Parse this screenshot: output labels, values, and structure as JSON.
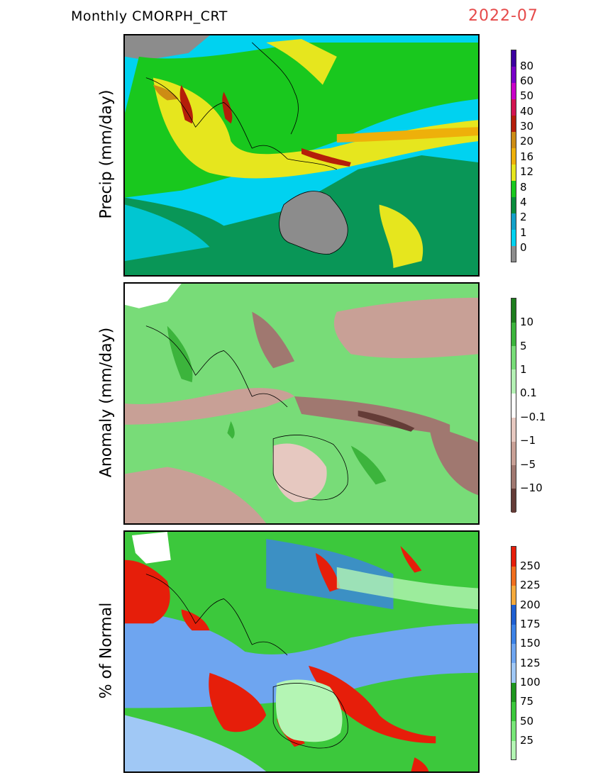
{
  "title": "Monthly CMORPH_CRT",
  "date": "2022-07",
  "panels": [
    {
      "ylabel": "Precip (mm/day)",
      "legend": [
        "0",
        "1",
        "2",
        "4",
        "8",
        "12",
        "16",
        "20",
        "30",
        "40",
        "50",
        "60",
        "80"
      ],
      "colors": [
        "#8c8c8c",
        "#00d2f0",
        "#13a0c8",
        "#0a8c3c",
        "#19c81e",
        "#e6e61e",
        "#eeb00a",
        "#cd8c14",
        "#b41e0a",
        "#d21450",
        "#c800c8",
        "#7800c8",
        "#3c00a0"
      ]
    },
    {
      "ylabel": "Anomaly (mm/day)",
      "legend": [
        "10",
        "5",
        "1",
        "0.1",
        "−0.1",
        "−1",
        "−5",
        "−10"
      ],
      "colors": [
        "#1e7d1e",
        "#3cb43c",
        "#78dc78",
        "#b4f0b4",
        "#ffffff",
        "#e6c8c0",
        "#c8a096",
        "#a07870",
        "#643c37"
      ]
    },
    {
      "ylabel": "% of Normal",
      "legend": [
        "250",
        "225",
        "200",
        "175",
        "150",
        "125",
        "100",
        "75",
        "50",
        "25"
      ],
      "colors": [
        "#e61e0a",
        "#f06e1e",
        "#f5aa3c",
        "#1e5fd2",
        "#3c82e6",
        "#6ea5f0",
        "#a0c8f5",
        "#1e961e",
        "#3cc83c",
        "#78e678",
        "#b4f5b4"
      ]
    }
  ]
}
